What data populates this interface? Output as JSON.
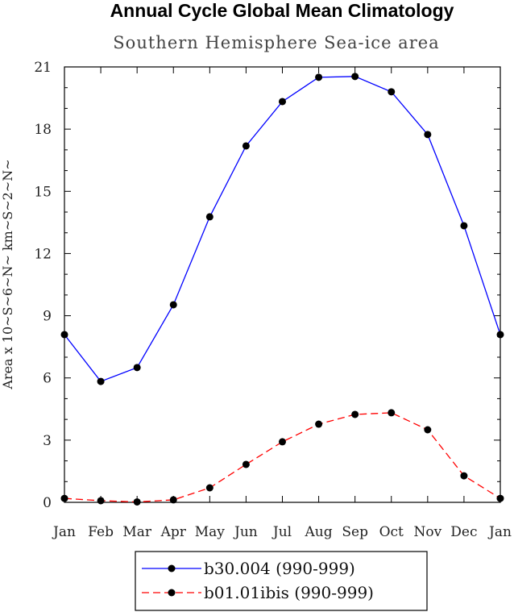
{
  "chart_data": {
    "type": "line",
    "title": "Annual Cycle Global Mean Climatology",
    "subtitle": "Southern Hemisphere Sea-ice area",
    "xlabel": "",
    "ylabel": "Area x 10~S~6~N~ km~S~2~N~",
    "categories": [
      "Jan",
      "Feb",
      "Mar",
      "Apr",
      "May",
      "Jun",
      "Jul",
      "Aug",
      "Sep",
      "Oct",
      "Nov",
      "Dec",
      "Jan"
    ],
    "ylim": [
      0,
      21
    ],
    "yticks": [
      0,
      3,
      6,
      9,
      12,
      15,
      18,
      21
    ],
    "legend_position": "bottom",
    "series": [
      {
        "name": "b30.004 (990-999)",
        "color": "#0000ff",
        "dash": "solid",
        "values": [
          8.09,
          5.83,
          6.5,
          9.53,
          13.77,
          17.19,
          19.33,
          20.5,
          20.54,
          19.8,
          17.74,
          13.34,
          8.09
        ]
      },
      {
        "name": "b01.01ibis (990-999)",
        "color": "#ff0000",
        "dash": "dashed",
        "values": [
          0.19,
          0.08,
          0.02,
          0.12,
          0.7,
          1.83,
          2.92,
          3.77,
          4.24,
          4.32,
          3.5,
          1.28,
          0.19
        ]
      }
    ]
  }
}
